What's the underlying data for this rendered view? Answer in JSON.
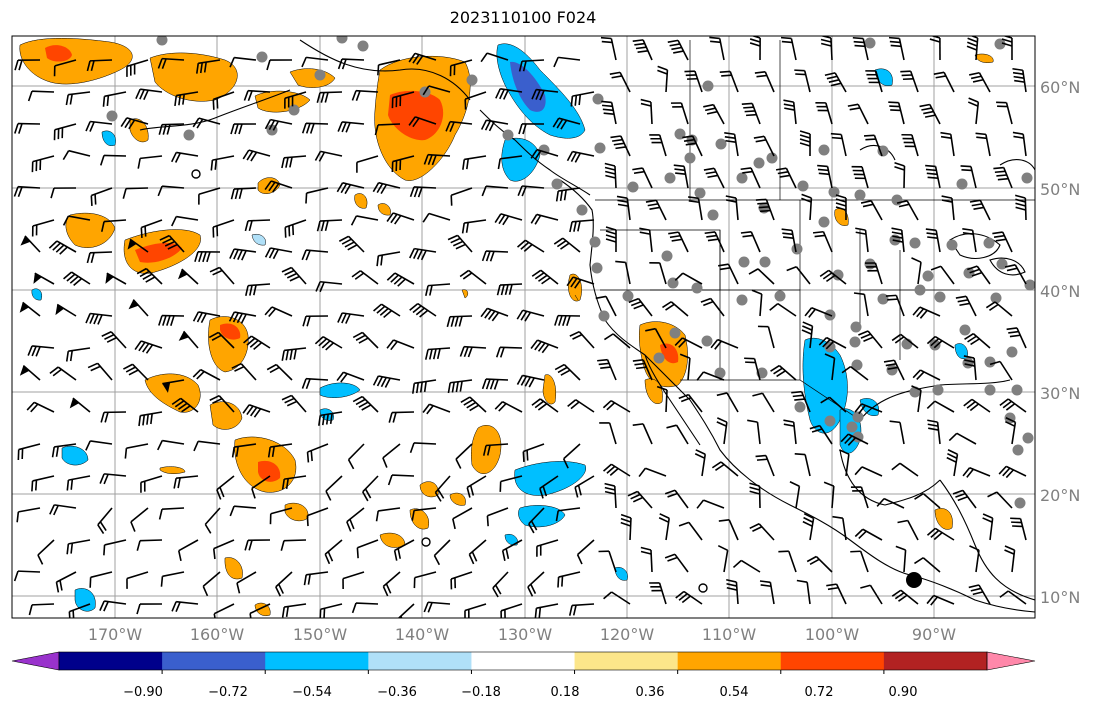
{
  "title": "2023110100 F024",
  "map": {
    "lat_labels": [
      "60°N",
      "50°N",
      "40°N",
      "30°N",
      "20°N",
      "10°N"
    ],
    "lon_labels": [
      "170°W",
      "160°W",
      "150°W",
      "140°W",
      "130°W",
      "120°W",
      "110°W",
      "100°W",
      "90°W"
    ],
    "gridline_color": "#a0a0a0",
    "coastline_color": "#000000",
    "station_marker_color": "#808080"
  },
  "colorbar": {
    "tick_labels": [
      "−0.90",
      "−0.72",
      "−0.54",
      "−0.36",
      "−0.18",
      "0.18",
      "0.36",
      "0.54",
      "0.72",
      "0.90"
    ],
    "colors": [
      "#9932cc",
      "#00008b",
      "#3a5fcd",
      "#00bfff",
      "#b0e0f8",
      "#ffffff",
      "#fce68a",
      "#ffa500",
      "#ff4500",
      "#b22222",
      "#ff88aa"
    ]
  },
  "contours": {
    "positive_colors": [
      "#fce68a",
      "#ffa500",
      "#ff4500"
    ],
    "negative_colors": [
      "#b0e0f8",
      "#00bfff",
      "#3a5fcd"
    ]
  }
}
